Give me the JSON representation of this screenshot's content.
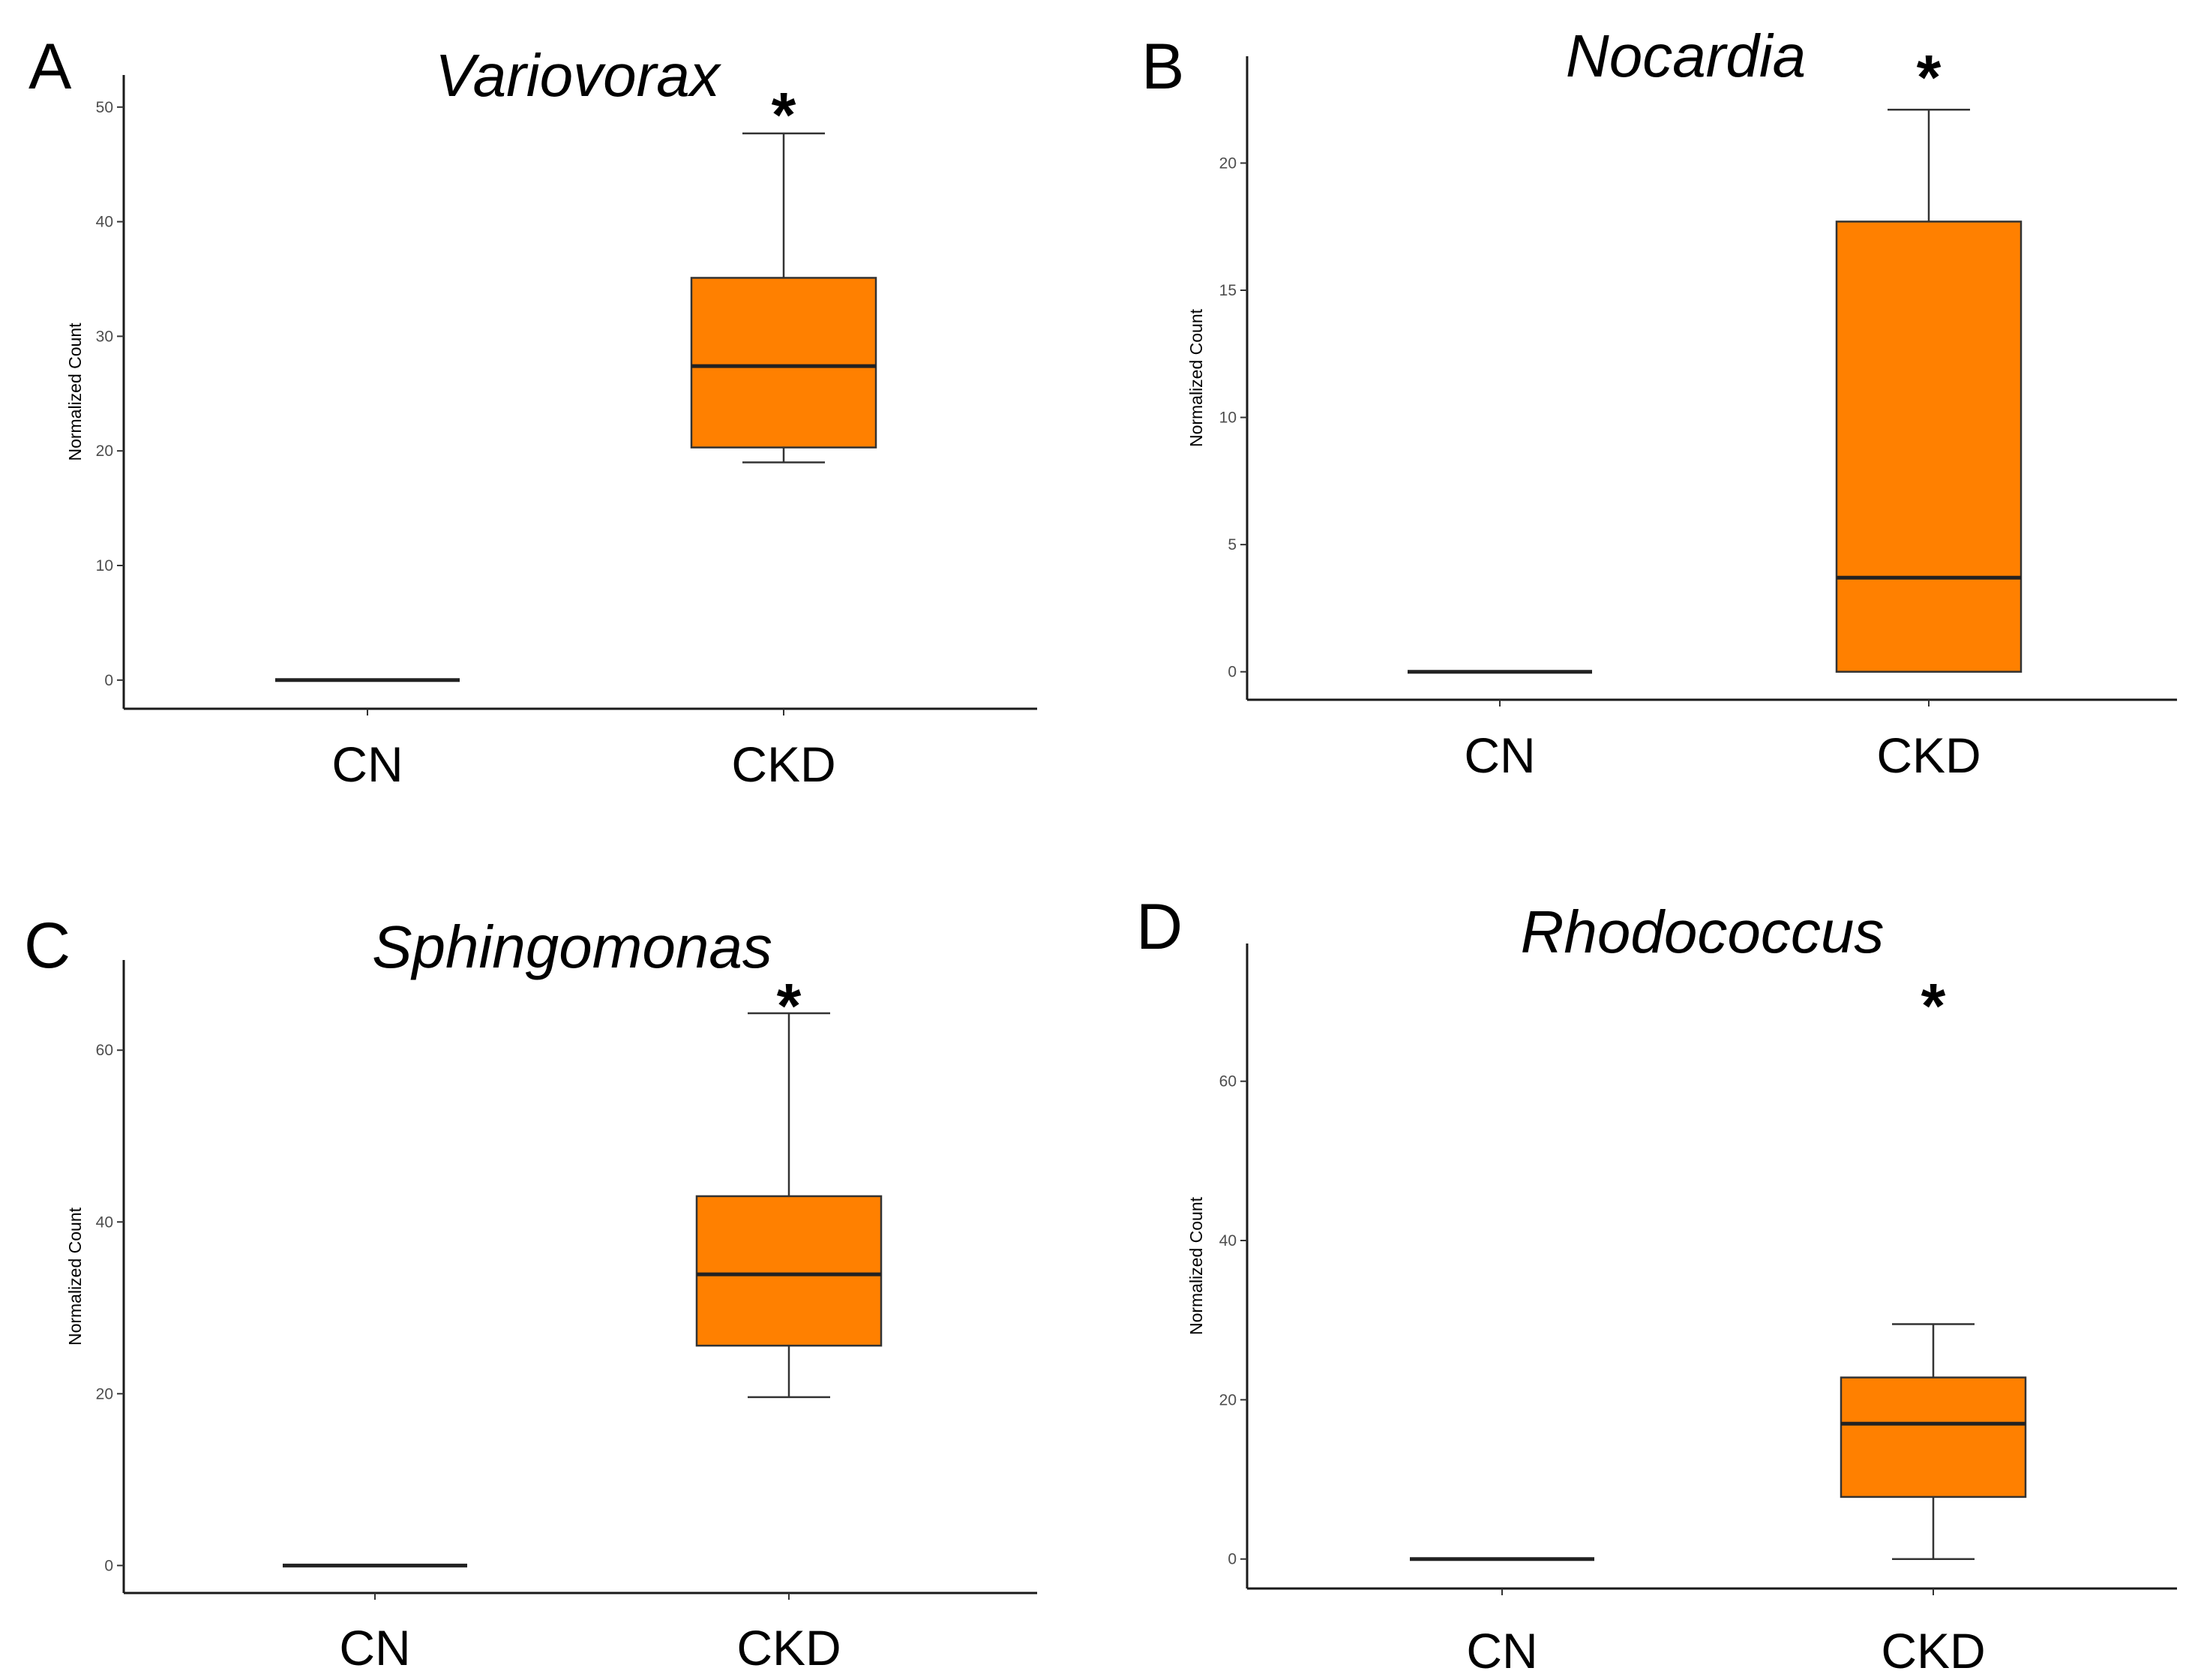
{
  "chart_data": [
    {
      "panel": "A",
      "type": "box",
      "title": "Variovorax",
      "ylabel": "Normalized Count",
      "categories": [
        "CN",
        "CKD"
      ],
      "ylim": [
        -2.5,
        52.8
      ],
      "yticks": [
        "0",
        "10",
        "20",
        "30",
        "40",
        "50"
      ],
      "boxes": [
        {
          "category": "CN",
          "min": 0,
          "q1": 0,
          "median": 0,
          "q3": 0,
          "max": 0
        },
        {
          "category": "CKD",
          "min": 19,
          "q1": 20.3,
          "median": 27.4,
          "q3": 35.1,
          "max": 47.7
        }
      ],
      "significance": [
        {
          "category": "CKD",
          "label": "*"
        }
      ],
      "fill": "#ff8000"
    },
    {
      "panel": "B",
      "type": "box",
      "title": "Nocardia",
      "ylabel": "Normalized Count",
      "categories": [
        "CN",
        "CKD"
      ],
      "ylim": [
        -1.1,
        24.2
      ],
      "yticks": [
        "0",
        "5",
        "10",
        "15",
        "20"
      ],
      "boxes": [
        {
          "category": "CN",
          "min": 0,
          "q1": 0,
          "median": 0,
          "q3": 0,
          "max": 0
        },
        {
          "category": "CKD",
          "min": 0,
          "q1": 0,
          "median": 3.7,
          "q3": 17.7,
          "max": 22.1
        }
      ],
      "significance": [
        {
          "category": "CKD",
          "label": "*"
        }
      ],
      "fill": "#ff8000"
    },
    {
      "panel": "C",
      "type": "box",
      "title": "Sphingomonas",
      "ylabel": "Normalized Count",
      "categories": [
        "CN",
        "CKD"
      ],
      "ylim": [
        -3.2,
        70.5
      ],
      "yticks": [
        "0",
        "20",
        "40",
        "60"
      ],
      "boxes": [
        {
          "category": "CN",
          "min": 0,
          "q1": 0,
          "median": 0,
          "q3": 0,
          "max": 0
        },
        {
          "category": "CKD",
          "min": 19.6,
          "q1": 25.6,
          "median": 33.9,
          "q3": 43,
          "max": 64.3
        }
      ],
      "significance": [
        {
          "category": "CKD",
          "label": "*"
        }
      ],
      "fill": "#ff8000"
    },
    {
      "panel": "D",
      "type": "box",
      "title": "Rhodococcus",
      "ylabel": "Normalized Count",
      "categories": [
        "CN",
        "CKD"
      ],
      "ylim": [
        -3.7,
        77.3
      ],
      "yticks": [
        "0",
        "20",
        "40",
        "60"
      ],
      "boxes": [
        {
          "category": "CN",
          "min": 0,
          "q1": 0,
          "median": 0,
          "q3": 0,
          "max": 0
        },
        {
          "category": "CKD",
          "min": 0,
          "q1": 7.8,
          "median": 17,
          "q3": 22.8,
          "max": 29.5
        }
      ],
      "significance": [
        {
          "category": "CKD",
          "label": "*"
        }
      ],
      "fill": "#ff8000"
    }
  ]
}
